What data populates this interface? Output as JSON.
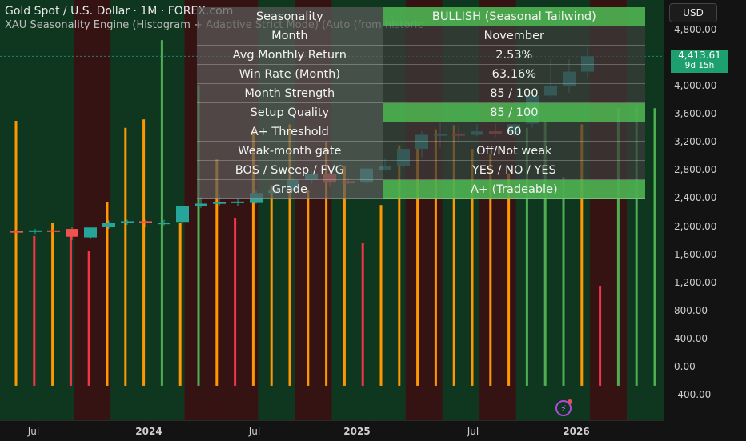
{
  "legend": {
    "symbol_line": "Gold Spot / U.S. Dollar · 1M · FOREX.com",
    "indicator_line": "XAU Seasonality Engine (Histogram + Adaptive Strict Mode) (Auto (from historic"
  },
  "currency_button": "USD",
  "last_price": {
    "value": "4,413.61",
    "countdown": "9d 15h"
  },
  "price_axis": [
    "4,800.00",
    "4,400.00",
    "4,000.00",
    "3,600.00",
    "3,200.00",
    "2,800.00",
    "2,400.00",
    "2,000.00",
    "1,600.00",
    "1,200.00",
    "800.00",
    "400.00",
    "0.00",
    "-400.00"
  ],
  "time_axis": [
    {
      "label": "Jul",
      "bold": false
    },
    {
      "label": "2024",
      "bold": true
    },
    {
      "label": "Jul",
      "bold": false
    },
    {
      "label": "2025",
      "bold": true
    },
    {
      "label": "Jul",
      "bold": false
    },
    {
      "label": "2026",
      "bold": true
    }
  ],
  "table": {
    "rows": [
      {
        "label": "Seasonality",
        "value": "BULLISH (Seasonal Tailwind)",
        "highlight": true
      },
      {
        "label": "Month",
        "value": "November",
        "highlight": false
      },
      {
        "label": "Avg Monthly Return",
        "value": "2.53%",
        "highlight": false
      },
      {
        "label": "Win Rate (Month)",
        "value": "63.16%",
        "highlight": false
      },
      {
        "label": "Month Strength",
        "value": "85 / 100",
        "highlight": false
      },
      {
        "label": "Setup Quality",
        "value": "85 / 100",
        "highlight": true
      },
      {
        "label": "A+ Threshold",
        "value": "60",
        "highlight": false
      },
      {
        "label": "Weak-month gate",
        "value": "Off/Not weak",
        "highlight": false
      },
      {
        "label": "BOS / Sweep / FVG",
        "value": "YES / NO / YES",
        "highlight": false
      },
      {
        "label": "Grade",
        "value": "A+ (Tradeable)",
        "highlight": true
      }
    ]
  },
  "colors": {
    "up": "#26a69a",
    "down": "#ef5350",
    "hist_bull": "#4caf50",
    "hist_bear": "#f23645",
    "hist_neutral": "#ff9800",
    "bg_bull": "#0f3d22",
    "bg_bear": "#3d1414"
  },
  "chart_data": {
    "type": "candlestick + histogram",
    "y_range": [
      -400,
      4800
    ],
    "candles": [
      {
        "o": 1930,
        "h": 1950,
        "l": 1900,
        "c": 1920
      },
      {
        "o": 1920,
        "h": 1960,
        "l": 1890,
        "c": 1940
      },
      {
        "o": 1940,
        "h": 1960,
        "l": 1900,
        "c": 1930
      },
      {
        "o": 1960,
        "h": 1990,
        "l": 1800,
        "c": 1850
      },
      {
        "o": 1840,
        "h": 1990,
        "l": 1820,
        "c": 1980
      },
      {
        "o": 1990,
        "h": 2080,
        "l": 1960,
        "c": 2050
      },
      {
        "o": 2050,
        "h": 2090,
        "l": 2020,
        "c": 2070
      },
      {
        "o": 2070,
        "h": 2090,
        "l": 1980,
        "c": 2040
      },
      {
        "o": 2040,
        "h": 2090,
        "l": 2010,
        "c": 2050
      },
      {
        "o": 2060,
        "h": 2270,
        "l": 2050,
        "c": 2280
      },
      {
        "o": 2290,
        "h": 2420,
        "l": 2260,
        "c": 2320
      },
      {
        "o": 2330,
        "h": 2450,
        "l": 2290,
        "c": 2340
      },
      {
        "o": 2330,
        "h": 2390,
        "l": 2280,
        "c": 2350
      },
      {
        "o": 2330,
        "h": 2510,
        "l": 2320,
        "c": 2470
      },
      {
        "o": 2470,
        "h": 2580,
        "l": 2460,
        "c": 2520
      },
      {
        "o": 2520,
        "h": 2680,
        "l": 2490,
        "c": 2660
      },
      {
        "o": 2660,
        "h": 2800,
        "l": 2600,
        "c": 2740
      },
      {
        "o": 2740,
        "h": 2760,
        "l": 2560,
        "c": 2620
      },
      {
        "o": 2640,
        "h": 2680,
        "l": 2600,
        "c": 2610
      },
      {
        "o": 2620,
        "h": 2820,
        "l": 2600,
        "c": 2820
      },
      {
        "o": 2800,
        "h": 2960,
        "l": 2790,
        "c": 2850
      },
      {
        "o": 2860,
        "h": 3060,
        "l": 2820,
        "c": 3100
      },
      {
        "o": 3100,
        "h": 3350,
        "l": 2980,
        "c": 3300
      },
      {
        "o": 3300,
        "h": 3480,
        "l": 3120,
        "c": 3310
      },
      {
        "o": 3310,
        "h": 3430,
        "l": 3200,
        "c": 3300
      },
      {
        "o": 3300,
        "h": 3450,
        "l": 3280,
        "c": 3350
      },
      {
        "o": 3350,
        "h": 3460,
        "l": 3270,
        "c": 3320
      },
      {
        "o": 3320,
        "h": 3460,
        "l": 3270,
        "c": 3450
      },
      {
        "o": 3460,
        "h": 3870,
        "l": 3400,
        "c": 3860
      },
      {
        "o": 3860,
        "h": 4380,
        "l": 3820,
        "c": 4000
      },
      {
        "o": 4000,
        "h": 4380,
        "l": 3900,
        "c": 4200
      },
      {
        "o": 4200,
        "h": 4550,
        "l": 4100,
        "c": 4420
      }
    ],
    "histogram": [
      {
        "v": 3500,
        "c": "neutral"
      },
      {
        "v": 1860,
        "c": "bear"
      },
      {
        "v": 2050,
        "c": "neutral"
      },
      {
        "v": 1960,
        "c": "bear"
      },
      {
        "v": 1650,
        "c": "bear"
      },
      {
        "v": 2340,
        "c": "neutral"
      },
      {
        "v": 3400,
        "c": "neutral"
      },
      {
        "v": 3520,
        "c": "neutral"
      },
      {
        "v": 4650,
        "c": "bull"
      },
      {
        "v": 2050,
        "c": "neutral"
      },
      {
        "v": 4010,
        "c": "bull"
      },
      {
        "v": 2950,
        "c": "neutral"
      },
      {
        "v": 2120,
        "c": "bear"
      },
      {
        "v": 3380,
        "c": "neutral"
      },
      {
        "v": 2580,
        "c": "neutral"
      },
      {
        "v": 3450,
        "c": "neutral"
      },
      {
        "v": 2520,
        "c": "neutral"
      },
      {
        "v": 3200,
        "c": "neutral"
      },
      {
        "v": 2860,
        "c": "neutral"
      },
      {
        "v": 1760,
        "c": "bear"
      },
      {
        "v": 2300,
        "c": "neutral"
      },
      {
        "v": 3150,
        "c": "neutral"
      },
      {
        "v": 3300,
        "c": "neutral"
      },
      {
        "v": 3380,
        "c": "neutral"
      },
      {
        "v": 3440,
        "c": "neutral"
      },
      {
        "v": 3100,
        "c": "neutral"
      },
      {
        "v": 3020,
        "c": "neutral"
      },
      {
        "v": 2750,
        "c": "neutral"
      },
      {
        "v": 3400,
        "c": "bull"
      },
      {
        "v": 3500,
        "c": "bull"
      },
      {
        "v": 2700,
        "c": "bull"
      },
      {
        "v": 3450,
        "c": "neutral"
      },
      {
        "v": 1150,
        "c": "bear"
      },
      {
        "v": 3680,
        "c": "bull"
      },
      {
        "v": 3720,
        "c": "bull"
      },
      {
        "v": 3680,
        "c": "bull"
      },
      {
        "v": 2780,
        "c": "bull"
      },
      {
        "v": 3520,
        "c": "bull"
      },
      {
        "v": 3240,
        "c": "bull"
      },
      {
        "v": 3680,
        "c": "bull"
      },
      {
        "v": 2000,
        "c": "neutral"
      },
      {
        "v": 3080,
        "c": "neutral"
      },
      {
        "v": 3840,
        "c": "bull"
      },
      {
        "v": 3800,
        "c": "neutral"
      },
      {
        "v": 3740,
        "c": "bull"
      },
      {
        "v": 3780,
        "c": "bull"
      }
    ],
    "background_bands": [
      "bull",
      "bull",
      "bear",
      "bull",
      "bull",
      "bear",
      "bear",
      "bull",
      "bear",
      "bull",
      "bull",
      "bear",
      "bull",
      "bear",
      "bull",
      "bull",
      "bear",
      "bull"
    ]
  }
}
